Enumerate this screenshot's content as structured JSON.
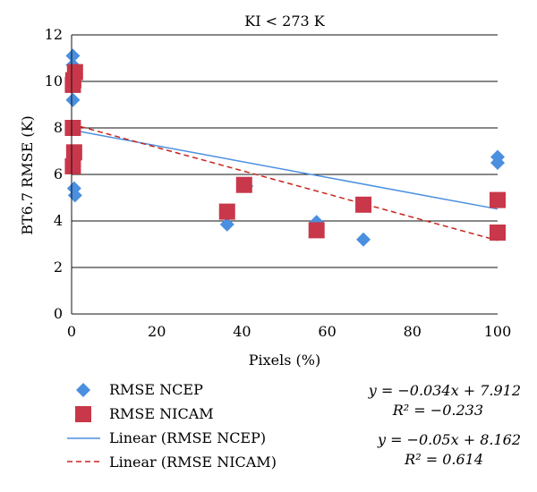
{
  "chart_data": {
    "type": "scatter",
    "title": "KI < 273 K",
    "xlabel": "Pixels (%)",
    "ylabel": "BT6.7 RMSE (K)",
    "xlim": [
      0,
      100
    ],
    "ylim": [
      0,
      12
    ],
    "xticks": [
      0,
      20,
      40,
      60,
      80,
      100
    ],
    "yticks": [
      0,
      2,
      4,
      6,
      8,
      10,
      12
    ],
    "grid": "horizontal",
    "legend_position": "bottom-left",
    "series": [
      {
        "name": "RMSE NCEP",
        "marker": "diamond",
        "color": "#4a8fe0",
        "points": [
          {
            "x": 0.3,
            "y": 11.1
          },
          {
            "x": 0.3,
            "y": 10.7
          },
          {
            "x": 0.3,
            "y": 10.2
          },
          {
            "x": 0.3,
            "y": 9.2
          },
          {
            "x": 0.3,
            "y": 8.0
          },
          {
            "x": 0.3,
            "y": 6.5
          },
          {
            "x": 0.6,
            "y": 5.4
          },
          {
            "x": 0.8,
            "y": 5.1
          },
          {
            "x": 36.5,
            "y": 3.85
          },
          {
            "x": 41,
            "y": 5.5
          },
          {
            "x": 57.5,
            "y": 3.95
          },
          {
            "x": 68.5,
            "y": 3.2
          },
          {
            "x": 100,
            "y": 6.75
          },
          {
            "x": 100,
            "y": 6.5
          }
        ]
      },
      {
        "name": "RMSE NICAM",
        "marker": "square",
        "color": "#c8374a",
        "points": [
          {
            "x": 0.8,
            "y": 10.4
          },
          {
            "x": 0.4,
            "y": 10.05
          },
          {
            "x": 0.3,
            "y": 9.85
          },
          {
            "x": 0.3,
            "y": 8.0
          },
          {
            "x": 0.6,
            "y": 6.95
          },
          {
            "x": 0.3,
            "y": 6.35
          },
          {
            "x": 36.5,
            "y": 4.4
          },
          {
            "x": 40.5,
            "y": 5.55
          },
          {
            "x": 57.5,
            "y": 3.6
          },
          {
            "x": 68.5,
            "y": 4.7
          },
          {
            "x": 100,
            "y": 4.9
          },
          {
            "x": 100,
            "y": 3.5
          }
        ]
      }
    ],
    "trendlines": [
      {
        "name": "Linear (RMSE NCEP)",
        "slope": -0.034,
        "intercept": 7.912,
        "style": "solid",
        "color": "#4a8fe0",
        "equation": "y = −0.034x + 7.912",
        "r2_label": "R² = −0.233"
      },
      {
        "name": "Linear (RMSE NICAM)",
        "slope": -0.05,
        "intercept": 8.162,
        "style": "dashed",
        "color": "#c8241d",
        "equation": "y = −0.05x + 8.162",
        "r2_label": "R² = 0.614"
      }
    ]
  }
}
